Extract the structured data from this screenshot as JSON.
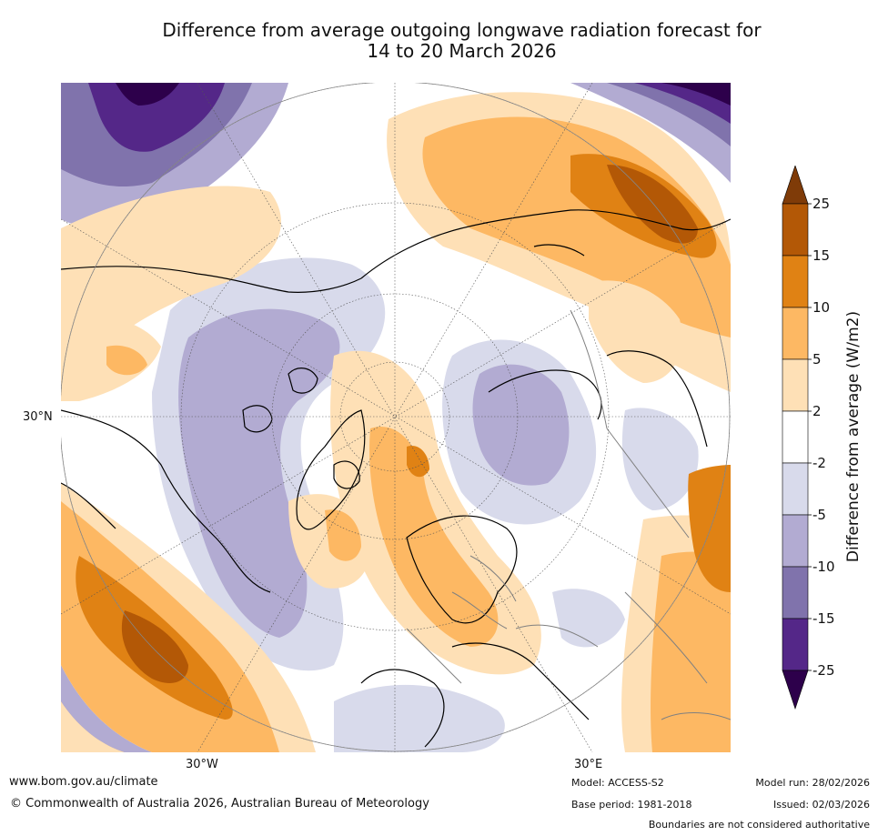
{
  "title_line1": "Difference from average outgoing longwave radiation forecast for",
  "title_line2": "14 to 20 March 2026",
  "map": {
    "lat_label": "30°N",
    "lon_label_west": "30°W",
    "lon_label_east": "30°E"
  },
  "colorbar": {
    "title": "Difference from average (W/m2)",
    "ticks": [
      "25",
      "15",
      "10",
      "5",
      "2",
      "-2",
      "-5",
      "-10",
      "-15",
      "-25"
    ],
    "colors": [
      "#b35806",
      "#e08214",
      "#fdb863",
      "#fee0b6",
      "#ffffff",
      "#d8daeb",
      "#b2abd2",
      "#8073ac",
      "#542788"
    ],
    "over_color": "#7f3b08",
    "under_color": "#2d004b"
  },
  "footer": {
    "website": "www.bom.gov.au/climate",
    "copyright": "© Commonwealth of Australia 2026, Australian Bureau of Meteorology",
    "model": "Model: ACCESS-S2",
    "base_period": "Base period: 1981-2018",
    "model_run": "Model run: 28/02/2026",
    "issued": "Issued: 02/03/2026",
    "disclaimer": "Boundaries are not considered authoritative"
  }
}
